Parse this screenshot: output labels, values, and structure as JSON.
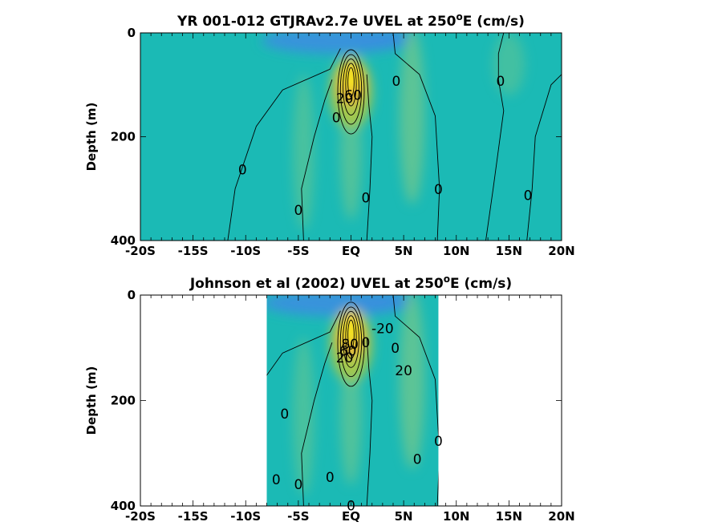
{
  "chart_data": [
    {
      "type": "heatmap",
      "title_text": "YR 001-012 GTJRAv2.7e UVEL at 250",
      "title_sup": "o",
      "title_suffix": "E (cm/s)",
      "xlabel": "",
      "ylabel": "Depth (m)",
      "xlim": [
        -20,
        20
      ],
      "ylim": [
        400,
        0
      ],
      "x_ticks": [
        -20,
        -15,
        -10,
        -5,
        0,
        5,
        10,
        15,
        20
      ],
      "x_tick_labels": [
        "-20S",
        "-15S",
        "-10S",
        "-5S",
        "EQ",
        "5N",
        "10N",
        "15N",
        "20N"
      ],
      "y_ticks": [
        0,
        200,
        400
      ],
      "y_tick_labels": [
        "0",
        "200",
        "400"
      ],
      "data_extent_x": [
        -20,
        20
      ],
      "background": "#1bbab5",
      "colors": {
        "negative": "#3a8fe0",
        "weak_positive": "#68c690",
        "mid_positive": "#a8c84a",
        "strong_positive": "#e8b83a",
        "peak": "#f6e81e"
      },
      "core": {
        "lat": 0,
        "depth_m": 95,
        "peak_cm_s": 100
      },
      "contour_labels": [
        {
          "text": "0",
          "lat": 4.3,
          "depth": 93
        },
        {
          "text": "0",
          "lat": 14.2,
          "depth": 93
        },
        {
          "text": "0",
          "lat": -10.3,
          "depth": 263
        },
        {
          "text": "0",
          "lat": -5.0,
          "depth": 341
        },
        {
          "text": "0",
          "lat": 1.4,
          "depth": 317
        },
        {
          "text": "0",
          "lat": 8.3,
          "depth": 301
        },
        {
          "text": "0",
          "lat": 16.8,
          "depth": 313
        },
        {
          "text": "0",
          "lat": -1.4,
          "depth": 163
        },
        {
          "text": "60",
          "lat": 0.2,
          "depth": 120
        },
        {
          "text": "20",
          "lat": -0.6,
          "depth": 126
        }
      ]
    },
    {
      "type": "heatmap",
      "title_text": "Johnson et al (2002) UVEL at 250",
      "title_sup": "o",
      "title_suffix": "E (cm/s)",
      "xlabel": "",
      "ylabel": "Depth (m)",
      "xlim": [
        -20,
        20
      ],
      "ylim": [
        400,
        0
      ],
      "x_ticks": [
        -20,
        -15,
        -10,
        -5,
        0,
        5,
        10,
        15,
        20
      ],
      "x_tick_labels": [
        "-20S",
        "-15S",
        "-10S",
        "-5S",
        "EQ",
        "5N",
        "10N",
        "15N",
        "20N"
      ],
      "y_ticks": [
        0,
        200,
        400
      ],
      "y_tick_labels": [
        "0",
        "200",
        "400"
      ],
      "data_extent_x": [
        -8,
        8.3
      ],
      "background": "#1bbab5",
      "colors": {
        "negative": "#3a8fe0",
        "weak_positive": "#68c690",
        "mid_positive": "#a8c84a",
        "strong_positive": "#e8b83a",
        "peak": "#f6e81e"
      },
      "core": {
        "lat": 0,
        "depth_m": 75,
        "peak_cm_s": 100
      },
      "contour_labels": [
        {
          "text": "-20",
          "lat": 3.0,
          "depth": 63
        },
        {
          "text": "20",
          "lat": 5.0,
          "depth": 143
        },
        {
          "text": "0",
          "lat": 4.2,
          "depth": 100
        },
        {
          "text": "0",
          "lat": 1.4,
          "depth": 90
        },
        {
          "text": "0",
          "lat": -6.3,
          "depth": 225
        },
        {
          "text": "0",
          "lat": -7.1,
          "depth": 350
        },
        {
          "text": "0",
          "lat": -5.0,
          "depth": 359
        },
        {
          "text": "0",
          "lat": -2.0,
          "depth": 345
        },
        {
          "text": "0",
          "lat": 0,
          "depth": 399
        },
        {
          "text": "0",
          "lat": 6.3,
          "depth": 311
        },
        {
          "text": "0",
          "lat": 8.3,
          "depth": 277
        },
        {
          "text": "80",
          "lat": -0.1,
          "depth": 93
        },
        {
          "text": "60",
          "lat": -0.3,
          "depth": 106
        },
        {
          "text": "20",
          "lat": -0.6,
          "depth": 119
        }
      ]
    }
  ]
}
